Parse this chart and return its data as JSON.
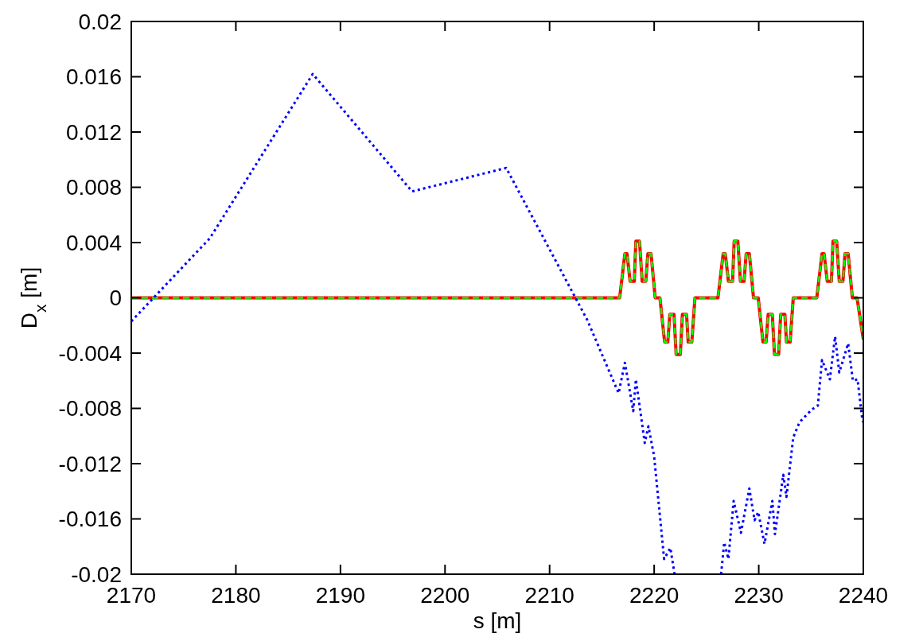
{
  "chart_data": {
    "type": "line",
    "xlabel": "s [m]",
    "ylabel": "D$_{x}$ [m]",
    "xlim": [
      2170,
      2240
    ],
    "xticks": [
      2170,
      2180,
      2190,
      2200,
      2210,
      2220,
      2230,
      2240
    ],
    "ylim": [
      -0.02,
      0.02
    ],
    "yticks": [
      -0.02,
      -0.016,
      -0.012,
      -0.008,
      -0.004,
      0,
      0.004,
      0.008,
      0.012,
      0.016,
      0.02
    ],
    "grid": false,
    "series": [
      {
        "color": "#ff0000",
        "line_style": "solid",
        "x": [
          2170,
          2216.7,
          2217.2,
          2217.4,
          2217.7,
          2218.1,
          2218.25,
          2218.6,
          2218.85,
          2219.2,
          2219.4,
          2219.7,
          2220.1,
          2220.55,
          2221.0,
          2221.3,
          2221.5,
          2221.9,
          2222.1,
          2222.5,
          2222.7,
          2223.1,
          2223.25,
          2223.6,
          2223.9,
          2226.1,
          2226.6,
          2226.8,
          2227.1,
          2227.5,
          2227.65,
          2228.0,
          2228.25,
          2228.6,
          2228.8,
          2229.1,
          2229.5,
          2229.95,
          2230.4,
          2230.7,
          2230.9,
          2231.3,
          2231.5,
          2231.9,
          2232.1,
          2232.5,
          2232.65,
          2233.0,
          2233.3,
          2235.55,
          2236.05,
          2236.25,
          2236.55,
          2236.95,
          2237.1,
          2237.45,
          2237.7,
          2238.05,
          2238.25,
          2238.55,
          2238.95,
          2239.4,
          2240
        ],
        "values": [
          0,
          0,
          0.0032,
          0.0032,
          0.0012,
          0.0012,
          0.0041,
          0.0041,
          0.0012,
          0.0012,
          0.0032,
          0.0032,
          0,
          0,
          -0.0032,
          -0.0032,
          -0.0012,
          -0.0012,
          -0.0041,
          -0.0041,
          -0.0012,
          -0.0012,
          -0.0032,
          -0.0032,
          0,
          0,
          0.0032,
          0.0032,
          0.0012,
          0.0012,
          0.0041,
          0.0041,
          0.0012,
          0.0012,
          0.0032,
          0.0032,
          0,
          0,
          -0.0032,
          -0.0032,
          -0.0012,
          -0.0012,
          -0.0041,
          -0.0041,
          -0.0012,
          -0.0012,
          -0.0032,
          -0.0032,
          0,
          0,
          0.0032,
          0.0032,
          0.0012,
          0.0012,
          0.0041,
          0.0041,
          0.0012,
          0.0012,
          0.0032,
          0.0032,
          0,
          0,
          -0.003
        ]
      },
      {
        "color": "#00ff00",
        "line_style": "dashed",
        "x": [
          2170,
          2216.7,
          2217.2,
          2217.4,
          2217.7,
          2218.1,
          2218.25,
          2218.6,
          2218.85,
          2219.2,
          2219.4,
          2219.7,
          2220.1,
          2220.55,
          2221.0,
          2221.3,
          2221.5,
          2221.9,
          2222.1,
          2222.5,
          2222.7,
          2223.1,
          2223.25,
          2223.6,
          2223.9,
          2226.1,
          2226.6,
          2226.8,
          2227.1,
          2227.5,
          2227.65,
          2228.0,
          2228.25,
          2228.6,
          2228.8,
          2229.1,
          2229.5,
          2229.95,
          2230.4,
          2230.7,
          2230.9,
          2231.3,
          2231.5,
          2231.9,
          2232.1,
          2232.5,
          2232.65,
          2233.0,
          2233.3,
          2235.55,
          2236.05,
          2236.25,
          2236.55,
          2236.95,
          2237.1,
          2237.45,
          2237.7,
          2238.05,
          2238.25,
          2238.55,
          2238.95,
          2239.4,
          2240
        ],
        "values": [
          0,
          0,
          0.0032,
          0.0032,
          0.0012,
          0.0012,
          0.0041,
          0.0041,
          0.0012,
          0.0012,
          0.0032,
          0.0032,
          0,
          0,
          -0.0032,
          -0.0032,
          -0.0012,
          -0.0012,
          -0.0041,
          -0.0041,
          -0.0012,
          -0.0012,
          -0.0032,
          -0.0032,
          0,
          0,
          0.0032,
          0.0032,
          0.0012,
          0.0012,
          0.0041,
          0.0041,
          0.0012,
          0.0012,
          0.0032,
          0.0032,
          0,
          0,
          -0.0032,
          -0.0032,
          -0.0012,
          -0.0012,
          -0.0041,
          -0.0041,
          -0.0012,
          -0.0012,
          -0.0032,
          -0.0032,
          0,
          0,
          0.0032,
          0.0032,
          0.0012,
          0.0012,
          0.0041,
          0.0041,
          0.0012,
          0.0012,
          0.0032,
          0.0032,
          0,
          0,
          -0.003
        ]
      },
      {
        "color": "#0000ff",
        "line_style": "dotted",
        "x": [
          2170,
          2177.5,
          2187.35,
          2196.85,
          2205.85,
          2213.6,
          2216.6,
          2217.2,
          2218.0,
          2218.25,
          2219.1,
          2219.45,
          2220.0,
          2220.95,
          2221.55,
          2221.95,
          2224,
          2226.4,
          2226.7,
          2227.1,
          2227.6,
          2228.3,
          2229.1,
          2229.6,
          2229.95,
          2230.55,
          2231.3,
          2231.55,
          2232.35,
          2232.65,
          2233.3,
          2233.9,
          2235.05,
          2235.65,
          2236.05,
          2236.8,
          2237.3,
          2237.7,
          2238.55,
          2239.0,
          2239.45,
          2239.9,
          2240
        ],
        "values": [
          -0.0017,
          0.0043,
          0.0162,
          0.0077,
          0.0094,
          -0.0016,
          -0.0069,
          -0.0047,
          -0.0082,
          -0.0059,
          -0.0105,
          -0.0093,
          -0.0115,
          -0.0189,
          -0.0181,
          -0.02,
          null,
          -0.02,
          -0.0177,
          -0.0189,
          -0.0147,
          -0.017,
          -0.0138,
          -0.0161,
          -0.0155,
          -0.0178,
          -0.0147,
          -0.0171,
          -0.0128,
          -0.0144,
          -0.0101,
          -0.009,
          -0.0081,
          -0.0078,
          -0.0045,
          -0.0059,
          -0.0028,
          -0.0054,
          -0.0033,
          -0.006,
          -0.0059,
          -0.0088,
          -0.009
        ]
      }
    ]
  }
}
